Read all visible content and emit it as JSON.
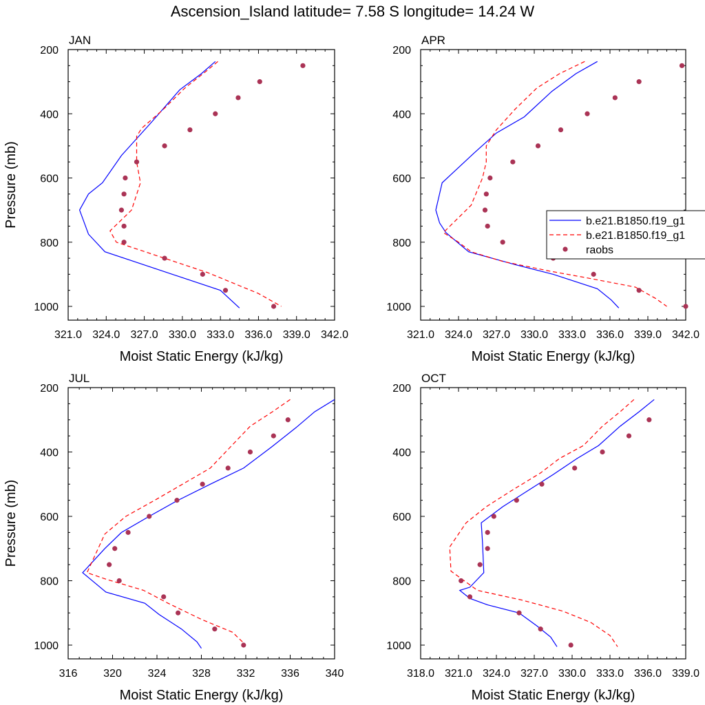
{
  "title": "Ascension_Island  latitude= 7.58 S longitude= 14.24 W",
  "chart_data": [
    {
      "type": "line",
      "panel_label": "JAN",
      "xlabel": "Moist Static Energy (kJ/kg)",
      "ylabel": "Pressure (mb)",
      "xlim": [
        321.0,
        342.0
      ],
      "ylim": [
        1000,
        200
      ],
      "xticks": [
        "321.0",
        "324.0",
        "327.0",
        "330.0",
        "333.0",
        "336.0",
        "339.0",
        "342.0"
      ],
      "yticks": [
        "200",
        "400",
        "600",
        "800",
        "1000"
      ],
      "series": [
        {
          "kind": "model_solid",
          "color": "#0000ff",
          "x": [
            332.6,
            331.5,
            329.8,
            327.6,
            325.2,
            323.7,
            322.6,
            321.9,
            322.6,
            323.9,
            333.0,
            334.5
          ],
          "y": [
            237,
            275,
            325,
            425,
            530,
            615,
            650,
            700,
            775,
            830,
            950,
            1005
          ]
        },
        {
          "kind": "model_dashed",
          "color": "#ff0000",
          "x": [
            332.8,
            331.8,
            330.2,
            328.4,
            326.8,
            326.4,
            326.4,
            326.7,
            326.0,
            324.3,
            324.8,
            332.0,
            336.0,
            337.8
          ],
          "y": [
            237,
            270,
            320,
            390,
            445,
            470,
            550,
            615,
            700,
            765,
            800,
            895,
            960,
            1000
          ]
        },
        {
          "kind": "raobs",
          "color": "#aa3355",
          "x": [
            339.5,
            336.1,
            334.4,
            332.6,
            330.6,
            328.6,
            326.4,
            325.5,
            325.4,
            325.2,
            325.4,
            325.4,
            328.6,
            331.6,
            333.4,
            337.2
          ],
          "y": [
            250,
            300,
            350,
            400,
            450,
            500,
            550,
            600,
            650,
            700,
            750,
            800,
            850,
            900,
            950,
            1000
          ]
        }
      ]
    },
    {
      "type": "line",
      "panel_label": "APR",
      "xlabel": "Moist Static Energy (kJ/kg)",
      "ylabel": "",
      "xlim": [
        321.0,
        342.0
      ],
      "ylim": [
        1000,
        200
      ],
      "xticks": [
        "321.0",
        "324.0",
        "327.0",
        "330.0",
        "333.0",
        "336.0",
        "339.0",
        "342.0"
      ],
      "yticks": [
        "200",
        "400",
        "600",
        "800",
        "1000"
      ],
      "legend": {
        "placement": "right",
        "entries": [
          "b.e21.B1850.f19_g1",
          "b.e21.B1850.f19_g1",
          "raobs"
        ]
      },
      "series": [
        {
          "kind": "model_solid",
          "color": "#0000ff",
          "name": "b.e21.B1850.f19_g1",
          "x": [
            335.0,
            333.3,
            331.4,
            329.2,
            327.0,
            325.3,
            322.7,
            322.2,
            322.5,
            323.0,
            324.8,
            328.5,
            331.5,
            335.0,
            336.1,
            336.7
          ],
          "y": [
            237,
            275,
            330,
            410,
            460,
            520,
            615,
            700,
            740,
            770,
            830,
            870,
            900,
            945,
            980,
            1005
          ]
        },
        {
          "kind": "model_dashed",
          "color": "#ff0000",
          "name": "b.e21.B1850.f19_g1",
          "x": [
            334.0,
            332.0,
            330.2,
            328.5,
            327.0,
            326.2,
            326.2,
            325.9,
            325.0,
            322.8,
            324.0,
            325.0,
            327.5,
            331.2,
            334.0,
            338.0,
            339.6,
            340.5
          ],
          "y": [
            237,
            275,
            320,
            385,
            450,
            500,
            550,
            600,
            685,
            770,
            800,
            830,
            860,
            890,
            910,
            940,
            975,
            1000
          ]
        },
        {
          "kind": "raobs",
          "color": "#aa3355",
          "name": "raobs",
          "x": [
            341.7,
            338.3,
            336.4,
            334.2,
            332.1,
            330.3,
            328.3,
            326.5,
            326.2,
            326.1,
            326.3,
            327.5,
            331.5,
            334.7,
            338.3,
            342.0
          ],
          "y": [
            250,
            300,
            350,
            400,
            450,
            500,
            550,
            600,
            650,
            700,
            750,
            800,
            850,
            900,
            950,
            1000
          ]
        }
      ]
    },
    {
      "type": "line",
      "panel_label": "JUL",
      "xlabel": "Moist Static Energy (kJ/kg)",
      "ylabel": "Pressure (mb)",
      "xlim": [
        316,
        340
      ],
      "ylim": [
        1000,
        200
      ],
      "xticks": [
        "316",
        "320",
        "324",
        "328",
        "332",
        "336",
        "340"
      ],
      "yticks": [
        "200",
        "400",
        "600",
        "800",
        "1000"
      ],
      "series": [
        {
          "kind": "model_solid",
          "color": "#0000ff",
          "x": [
            340.0,
            338.2,
            336.5,
            334.3,
            331.8,
            328.8,
            325.9,
            323.3,
            320.8,
            319.3,
            317.3,
            319.4,
            322.9,
            324.2,
            326.2,
            327.6,
            328.0
          ],
          "y": [
            237,
            275,
            325,
            385,
            450,
            500,
            550,
            600,
            650,
            700,
            775,
            835,
            870,
            905,
            950,
            990,
            1010
          ]
        },
        {
          "kind": "model_dashed",
          "color": "#ff0000",
          "x": [
            336.0,
            334.4,
            332.4,
            330.6,
            328.8,
            326.3,
            323.8,
            321.2,
            319.3,
            317.7,
            319.4,
            322.8,
            325.0,
            328.0,
            330.8,
            332.0
          ],
          "y": [
            237,
            275,
            320,
            385,
            450,
            500,
            550,
            600,
            655,
            775,
            795,
            830,
            870,
            920,
            960,
            1000
          ]
        },
        {
          "kind": "raobs",
          "color": "#aa3355",
          "x": [
            335.8,
            334.5,
            332.4,
            330.4,
            328.1,
            325.8,
            323.3,
            321.4,
            320.2,
            319.7,
            320.6,
            324.6,
            325.9,
            329.2,
            331.8
          ],
          "y": [
            300,
            350,
            400,
            450,
            500,
            550,
            600,
            650,
            700,
            750,
            800,
            850,
            900,
            950,
            1000
          ]
        }
      ]
    },
    {
      "type": "line",
      "panel_label": "OCT",
      "xlabel": "Moist Static Energy (kJ/kg)",
      "ylabel": "",
      "xlim": [
        318.0,
        339.0
      ],
      "ylim": [
        1000,
        200
      ],
      "xticks": [
        "318.0",
        "321.0",
        "324.0",
        "327.0",
        "330.0",
        "333.0",
        "336.0",
        "339.0"
      ],
      "yticks": [
        "200",
        "400",
        "600",
        "800",
        "1000"
      ],
      "series": [
        {
          "kind": "model_solid",
          "color": "#0000ff",
          "x": [
            336.5,
            335.3,
            333.8,
            332.1,
            330.4,
            328.5,
            326.5,
            324.5,
            322.8,
            322.9,
            323.0,
            321.9,
            321.1,
            321.9,
            323.3,
            325.8,
            327.2,
            328.3,
            328.8
          ],
          "y": [
            237,
            275,
            320,
            380,
            420,
            470,
            520,
            570,
            620,
            680,
            775,
            820,
            830,
            855,
            875,
            900,
            940,
            975,
            1005
          ]
        },
        {
          "kind": "model_dashed",
          "color": "#ff0000",
          "x": [
            334.9,
            333.8,
            332.4,
            330.9,
            329.0,
            327.5,
            325.2,
            323.2,
            321.6,
            320.3,
            320.4,
            322.5,
            326.0,
            329.3,
            331.5,
            333.0,
            333.6
          ],
          "y": [
            237,
            275,
            320,
            380,
            420,
            465,
            520,
            570,
            620,
            695,
            770,
            830,
            860,
            895,
            930,
            970,
            1005
          ]
        },
        {
          "kind": "raobs",
          "color": "#aa3355",
          "x": [
            336.1,
            334.5,
            332.4,
            330.2,
            327.6,
            325.6,
            323.8,
            323.3,
            323.3,
            322.7,
            321.2,
            321.9,
            325.8,
            327.5,
            329.9
          ],
          "y": [
            300,
            350,
            400,
            450,
            500,
            550,
            600,
            650,
            700,
            750,
            800,
            850,
            900,
            950,
            1000
          ]
        }
      ]
    }
  ]
}
